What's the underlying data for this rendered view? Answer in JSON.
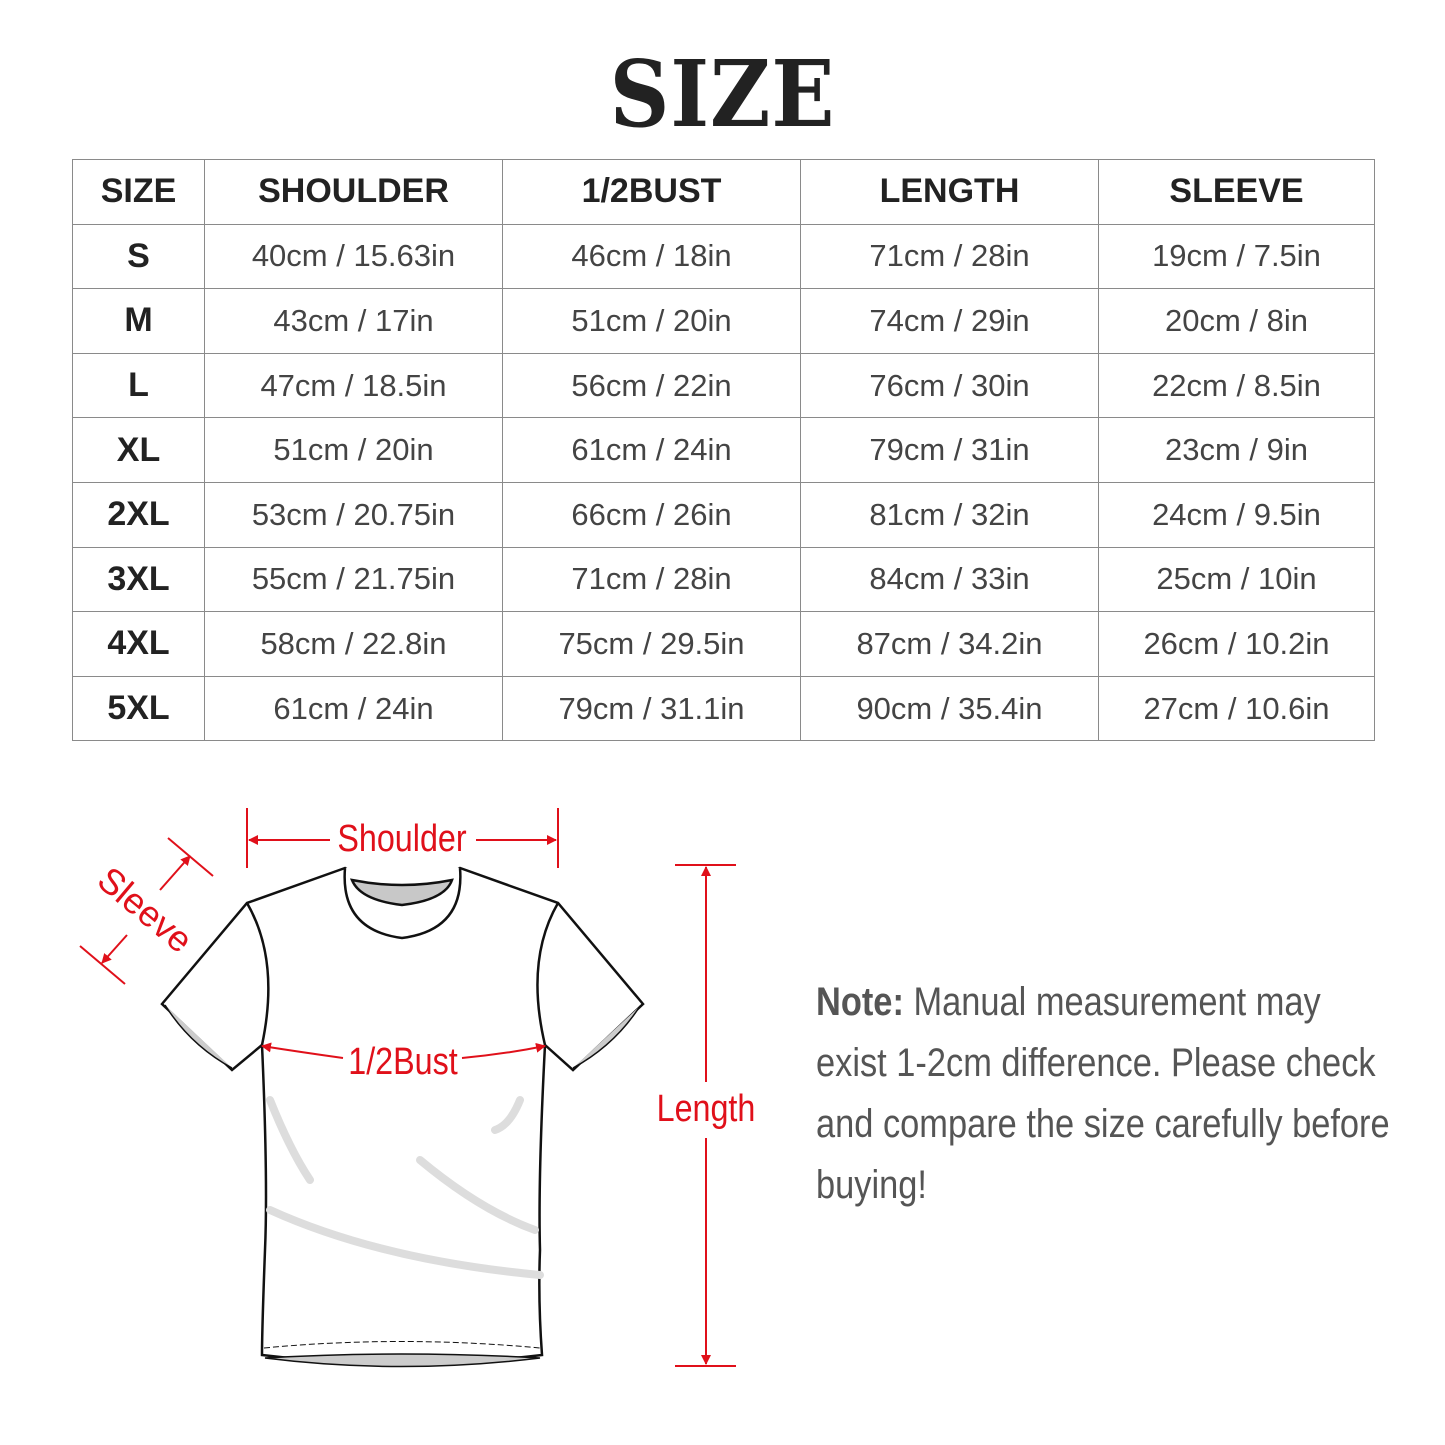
{
  "title": "SIZE",
  "table": {
    "headers": [
      "SIZE",
      "SHOULDER",
      "1/2BUST",
      "LENGTH",
      "SLEEVE"
    ],
    "rows": [
      [
        "S",
        "40cm / 15.63in",
        "46cm / 18in",
        "71cm / 28in",
        "19cm / 7.5in"
      ],
      [
        "M",
        "43cm / 17in",
        "51cm / 20in",
        "74cm / 29in",
        "20cm / 8in"
      ],
      [
        "L",
        "47cm / 18.5in",
        "56cm / 22in",
        "76cm / 30in",
        "22cm / 8.5in"
      ],
      [
        "XL",
        "51cm / 20in",
        "61cm / 24in",
        "79cm / 31in",
        "23cm / 9in"
      ],
      [
        "2XL",
        "53cm / 20.75in",
        "66cm / 26in",
        "81cm / 32in",
        "24cm / 9.5in"
      ],
      [
        "3XL",
        "55cm / 21.75in",
        "71cm / 28in",
        "84cm / 33in",
        "25cm / 10in"
      ],
      [
        "4XL",
        "58cm / 22.8in",
        "75cm / 29.5in",
        "87cm / 34.2in",
        "26cm / 10.2in"
      ],
      [
        "5XL",
        "61cm / 24in",
        "79cm / 31.1in",
        "90cm / 35.4in",
        "27cm / 10.6in"
      ]
    ]
  },
  "diagram": {
    "shoulder_label": "Shoulder",
    "sleeve_label": "Sleeve",
    "bust_label": "1/2Bust",
    "length_label": "Length",
    "accent_color": "#e0101a"
  },
  "note": {
    "prefix": "Note:",
    "text": " Manual measurement may exist 1-2cm difference. Please check and compare the size carefully before buying!"
  }
}
